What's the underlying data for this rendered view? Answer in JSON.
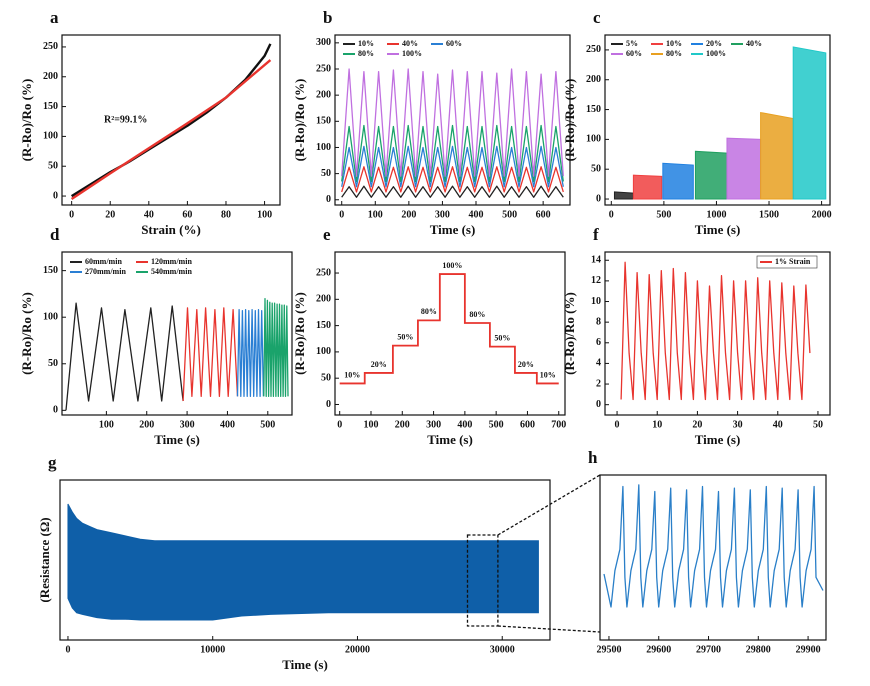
{
  "chart_data": [
    {
      "type": "line",
      "label": "a",
      "xlabel": "Strain (%)",
      "ylabel": "(R-Ro)/Ro (%)",
      "annotation": "R²=99.1%",
      "xlim": [
        -5,
        108
      ],
      "ylim": [
        -15,
        270
      ],
      "xticks": [
        0,
        20,
        40,
        60,
        80,
        100
      ],
      "yticks": [
        0,
        50,
        100,
        150,
        200,
        250
      ],
      "series": [
        {
          "color": "#111111",
          "x": [
            0,
            10,
            20,
            30,
            40,
            50,
            60,
            70,
            80,
            90,
            100,
            103
          ],
          "values": [
            0,
            20,
            40,
            58,
            78,
            98,
            118,
            140,
            165,
            195,
            235,
            255
          ]
        },
        {
          "color": "#e8342e",
          "x": [
            0,
            20,
            40,
            60,
            80,
            103
          ],
          "values": [
            -5,
            38,
            80,
            122,
            165,
            228
          ]
        }
      ]
    },
    {
      "type": "line",
      "label": "b",
      "xlabel": "Time (s)",
      "ylabel": "(R-Ro)/Ro (%)",
      "xlim": [
        -20,
        680
      ],
      "ylim": [
        -10,
        315
      ],
      "xticks": [
        0,
        100,
        200,
        300,
        400,
        500,
        600
      ],
      "yticks": [
        0,
        50,
        100,
        150,
        200,
        250,
        300
      ],
      "x": [
        0,
        22,
        44,
        66,
        88,
        110,
        132,
        154,
        176,
        198,
        220,
        242,
        264,
        286,
        308,
        330,
        352,
        374,
        396,
        418,
        440,
        462,
        484,
        506,
        528,
        550,
        572,
        594,
        616,
        638,
        660
      ],
      "series": [
        {
          "name": "10%",
          "color": "#222222",
          "values": [
            5,
            25,
            5,
            26,
            5,
            25,
            5,
            25,
            5,
            26,
            5,
            25,
            5,
            25,
            5,
            26,
            5,
            25,
            5,
            25,
            5,
            26,
            5,
            25,
            5,
            25,
            5,
            26,
            5,
            25,
            5
          ]
        },
        {
          "name": "40%",
          "color": "#e8342e",
          "values": [
            15,
            62,
            15,
            63,
            15,
            62,
            15,
            62,
            15,
            63,
            15,
            62,
            15,
            62,
            15,
            63,
            15,
            62,
            15,
            62,
            15,
            63,
            15,
            62,
            15,
            62,
            15,
            63,
            15,
            62,
            15
          ]
        },
        {
          "name": "60%",
          "color": "#2a7fd4",
          "values": [
            25,
            100,
            25,
            102,
            25,
            100,
            25,
            100,
            25,
            102,
            25,
            100,
            25,
            100,
            25,
            102,
            25,
            100,
            25,
            100,
            25,
            102,
            25,
            100,
            25,
            100,
            25,
            102,
            25,
            100,
            25
          ]
        },
        {
          "name": "80%",
          "color": "#1aa36b",
          "values": [
            35,
            140,
            35,
            142,
            35,
            140,
            35,
            140,
            35,
            142,
            35,
            140,
            35,
            140,
            35,
            142,
            35,
            140,
            35,
            140,
            35,
            142,
            35,
            140,
            35,
            140,
            35,
            142,
            35,
            140,
            35
          ]
        },
        {
          "name": "100%",
          "color": "#c070e0",
          "values": [
            45,
            250,
            45,
            245,
            45,
            245,
            45,
            248,
            45,
            250,
            45,
            245,
            45,
            240,
            45,
            248,
            45,
            245,
            45,
            245,
            45,
            242,
            45,
            250,
            45,
            245,
            45,
            240,
            45,
            245,
            45
          ]
        }
      ]
    },
    {
      "type": "block",
      "label": "c",
      "xlabel": "Time (s)",
      "ylabel": "(R-Ro)/Ro (%)",
      "xlim": [
        -60,
        2080
      ],
      "ylim": [
        -10,
        275
      ],
      "xticks": [
        0,
        500,
        1000,
        1500,
        2000
      ],
      "yticks": [
        0,
        50,
        100,
        150,
        200,
        250
      ],
      "series": [
        {
          "name": "5%",
          "color": "#222222",
          "x": [
            30,
            210
          ],
          "values": [
            12,
            10
          ]
        },
        {
          "name": "10%",
          "color": "#f04040",
          "x": [
            210,
            480
          ],
          "values": [
            40,
            38
          ]
        },
        {
          "name": "20%",
          "color": "#2080e0",
          "x": [
            490,
            780
          ],
          "values": [
            60,
            57
          ]
        },
        {
          "name": "40%",
          "color": "#20a060",
          "x": [
            800,
            1100
          ],
          "values": [
            80,
            77
          ]
        },
        {
          "name": "60%",
          "color": "#c070e0",
          "x": [
            1100,
            1420
          ],
          "values": [
            102,
            100
          ]
        },
        {
          "name": "80%",
          "color": "#e8a020",
          "x": [
            1420,
            1730
          ],
          "values": [
            145,
            135
          ]
        },
        {
          "name": "100%",
          "color": "#20c8c8",
          "x": [
            1730,
            2040
          ],
          "values": [
            255,
            245
          ]
        }
      ]
    },
    {
      "type": "line",
      "label": "d",
      "xlabel": "Time (s)",
      "ylabel": "(R-Ro)/Ro (%)",
      "xlim": [
        -10,
        560
      ],
      "ylim": [
        -5,
        170
      ],
      "xticks": [
        100,
        200,
        300,
        400,
        500
      ],
      "yticks": [
        0,
        50,
        100,
        150
      ],
      "series": [
        {
          "name": "60mm/min",
          "color": "#222222",
          "x": [
            0,
            25,
            56,
            88,
            117,
            146,
            178,
            210,
            237,
            263,
            290
          ],
          "values": [
            0,
            115,
            10,
            110,
            10,
            108,
            10,
            110,
            10,
            112,
            10
          ]
        },
        {
          "name": "120mm/min",
          "color": "#e8342e",
          "x": [
            290,
            301,
            312,
            324,
            335,
            346,
            358,
            369,
            380,
            391,
            402,
            414,
            425
          ],
          "values": [
            10,
            110,
            15,
            108,
            15,
            110,
            15,
            108,
            15,
            110,
            15,
            108,
            15
          ]
        },
        {
          "name": "270mm/min",
          "color": "#2a7fd4",
          "x": [
            425,
            429,
            433,
            437,
            441,
            445,
            449,
            453,
            457,
            461,
            465,
            469,
            473,
            477,
            481,
            485,
            489
          ],
          "values": [
            15,
            108,
            15,
            107,
            15,
            108,
            15,
            107,
            15,
            108,
            15,
            107,
            15,
            108,
            15,
            107,
            15
          ]
        },
        {
          "name": "540mm/min",
          "color": "#1aa36b",
          "x": [
            490,
            493,
            496,
            499,
            502,
            505,
            508,
            511,
            514,
            517,
            520,
            523,
            526,
            529,
            532,
            535,
            538,
            541,
            544,
            547,
            550
          ],
          "values": [
            15,
            120,
            15,
            118,
            15,
            116,
            15,
            115,
            15,
            115,
            15,
            114,
            15,
            114,
            15,
            113,
            15,
            113,
            15,
            112,
            15
          ]
        }
      ]
    },
    {
      "type": "step",
      "label": "e",
      "xlabel": "Time (s)",
      "ylabel": "(R-Ro)/Ro (%)",
      "xlim": [
        -15,
        720
      ],
      "ylim": [
        -20,
        290
      ],
      "xticks": [
        0,
        100,
        200,
        300,
        400,
        500,
        600,
        700
      ],
      "yticks": [
        0,
        50,
        100,
        150,
        200,
        250
      ],
      "color": "#e8342e",
      "edges": [
        0,
        80,
        170,
        250,
        320,
        400,
        480,
        560,
        630,
        700
      ],
      "values": [
        40,
        60,
        112,
        160,
        248,
        155,
        110,
        60,
        40
      ],
      "step_labels": [
        "10%",
        "20%",
        "50%",
        "80%",
        "100%",
        "80%",
        "50%",
        "20%",
        "10%"
      ]
    },
    {
      "type": "line",
      "label": "f",
      "xlabel": "Time (s)",
      "ylabel": "(R-Ro)/Ro (%)",
      "xlim": [
        -3,
        53
      ],
      "ylim": [
        -1,
        14.8
      ],
      "xticks": [
        0,
        10,
        20,
        30,
        40,
        50
      ],
      "yticks": [
        0,
        2,
        4,
        6,
        8,
        10,
        12,
        14
      ],
      "series": [
        {
          "name": "1% Strain",
          "color": "#e8342e",
          "x": [
            1,
            2,
            3,
            4,
            5,
            6,
            7,
            8,
            9,
            10,
            11,
            12,
            13,
            14,
            15,
            16,
            17,
            18,
            19,
            20,
            21,
            22,
            23,
            24,
            25,
            26,
            27,
            28,
            29,
            30,
            31,
            32,
            33,
            34,
            35,
            36,
            37,
            38,
            39,
            40,
            41,
            42,
            43,
            44,
            45,
            46,
            47,
            48
          ],
          "values": [
            0.5,
            13.8,
            5,
            0.5,
            12.8,
            5,
            0.5,
            12.6,
            5,
            0.5,
            13.0,
            5,
            0.5,
            13.2,
            5,
            0.5,
            12.8,
            5,
            0.5,
            12.0,
            5,
            0.5,
            11.5,
            5,
            0.5,
            12.5,
            5,
            0.5,
            12.0,
            5,
            0.5,
            12.0,
            5,
            0.5,
            12.3,
            5,
            0.5,
            12.0,
            5,
            0.5,
            11.8,
            5,
            0.5,
            11.5,
            5,
            0.5,
            11.6,
            5
          ]
        }
      ]
    },
    {
      "type": "band",
      "label": "g",
      "xlabel": "Time (s)",
      "ylabel": "(Resistance (Ω)",
      "xlim": [
        -550,
        33300
      ],
      "ylim": [
        0,
        100
      ],
      "xticks": [
        0,
        10000,
        20000,
        30000
      ],
      "zoom_xlim": [
        27600,
        29700
      ],
      "series": [
        {
          "color": "#0f5fa8",
          "x": [
            0,
            300,
            600,
            1000,
            1500,
            2000,
            3000,
            4000,
            5000,
            6000,
            8000,
            10000,
            12000,
            14000,
            18000,
            22000,
            26000,
            30000,
            32500
          ],
          "upper": [
            85,
            80,
            76,
            73,
            71,
            69,
            67,
            65,
            63,
            62,
            62,
            62,
            62,
            62,
            62,
            62,
            62,
            62,
            62
          ],
          "lower": [
            26,
            20,
            17,
            16,
            15,
            14,
            13,
            13,
            12.5,
            12.5,
            12.5,
            12.5,
            15,
            16,
            17,
            17,
            17,
            17,
            17
          ]
        }
      ]
    },
    {
      "type": "line",
      "label": "h",
      "xlim": [
        29482,
        29936
      ],
      "ylim": [
        0,
        100
      ],
      "xticks": [
        29500,
        29600,
        29700,
        29800,
        29900
      ],
      "series": [
        {
          "color": "#2a7fc8",
          "x": [
            29490,
            29504,
            29512,
            29522,
            29528,
            29532,
            29536,
            29544,
            29554,
            29560,
            29564,
            29568,
            29576,
            29586,
            29592,
            29596,
            29600,
            29608,
            29618,
            29624,
            29628,
            29632,
            29640,
            29650,
            29656,
            29660,
            29664,
            29672,
            29682,
            29688,
            29692,
            29696,
            29704,
            29714,
            29720,
            29724,
            29728,
            29736,
            29746,
            29752,
            29756,
            29760,
            29768,
            29778,
            29784,
            29788,
            29792,
            29800,
            29810,
            29816,
            29820,
            29824,
            29832,
            29842,
            29848,
            29852,
            29856,
            29864,
            29874,
            29880,
            29884,
            29888,
            29896,
            29906,
            29912,
            29916,
            29930
          ],
          "values": [
            40,
            20,
            42,
            55,
            93,
            38,
            20,
            42,
            55,
            94,
            38,
            20,
            42,
            55,
            90,
            38,
            20,
            42,
            55,
            92,
            38,
            20,
            42,
            55,
            91,
            38,
            20,
            42,
            55,
            93,
            38,
            20,
            42,
            55,
            90,
            38,
            20,
            42,
            55,
            92,
            38,
            20,
            42,
            55,
            91,
            38,
            20,
            42,
            55,
            93,
            38,
            20,
            42,
            55,
            92,
            38,
            20,
            42,
            55,
            91,
            38,
            20,
            42,
            55,
            93,
            38,
            30
          ]
        }
      ]
    }
  ]
}
